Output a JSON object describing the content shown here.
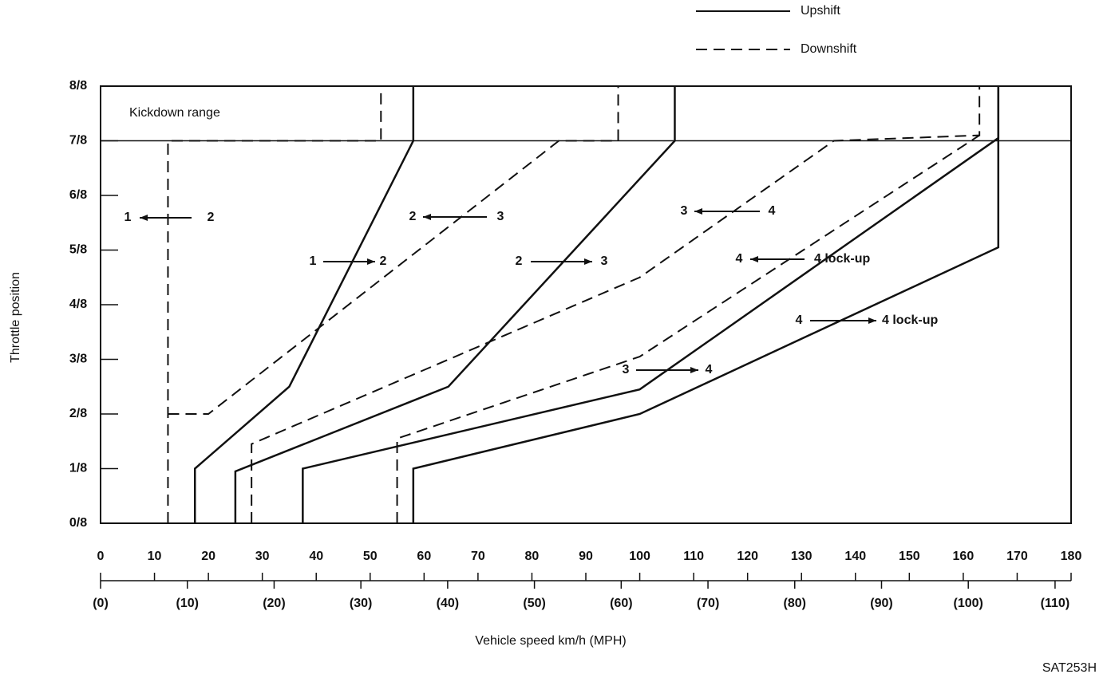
{
  "chart_data": {
    "type": "line",
    "xlabel": "Vehicle speed km/h (MPH)",
    "ylabel": "Throttle position",
    "footnote": "SAT253H",
    "legend": [
      {
        "label": "Upshift",
        "style": "solid"
      },
      {
        "label": "Downshift",
        "style": "dashed"
      }
    ],
    "xlim": [
      0,
      180
    ],
    "xticks": [
      0,
      10,
      20,
      30,
      40,
      50,
      60,
      70,
      80,
      90,
      100,
      110,
      120,
      130,
      140,
      150,
      160,
      170,
      180
    ],
    "x2ticks": [
      {
        "value": 0,
        "label": "(0)"
      },
      {
        "value": 10,
        "label": "(10)"
      },
      {
        "value": 20,
        "label": "(20)"
      },
      {
        "value": 30,
        "label": "(30)"
      },
      {
        "value": 40,
        "label": "(40)"
      },
      {
        "value": 50,
        "label": "(50)"
      },
      {
        "value": 60,
        "label": "(60)"
      },
      {
        "value": 70,
        "label": "(70)"
      },
      {
        "value": 80,
        "label": "(80)"
      },
      {
        "value": 90,
        "label": "(90)"
      },
      {
        "value": 100,
        "label": "(100)"
      },
      {
        "value": 110,
        "label": "(110)"
      }
    ],
    "ylim": [
      0,
      8
    ],
    "yticks": [
      {
        "value": 0,
        "label": "0/8"
      },
      {
        "value": 1,
        "label": "1/8"
      },
      {
        "value": 2,
        "label": "2/8"
      },
      {
        "value": 3,
        "label": "3/8"
      },
      {
        "value": 4,
        "label": "4/8"
      },
      {
        "value": 5,
        "label": "5/8"
      },
      {
        "value": 6,
        "label": "6/8"
      },
      {
        "value": 7,
        "label": "7/8"
      },
      {
        "value": 8,
        "label": "8/8"
      }
    ],
    "series": [
      {
        "style": "dashed",
        "x": [
          12.5,
          12.5,
          52,
          52
        ],
        "values": [
          0,
          7,
          7,
          8
        ]
      },
      {
        "style": "dashed",
        "x": [
          12.5,
          20,
          85,
          96,
          96
        ],
        "values": [
          2,
          2,
          7,
          7,
          8
        ]
      },
      {
        "style": "dashed",
        "x": [
          28,
          28,
          100,
          136,
          163,
          163
        ],
        "values": [
          0,
          1.45,
          4.5,
          7,
          7.1,
          8
        ]
      },
      {
        "style": "dashed",
        "x": [
          55,
          55,
          100,
          163
        ],
        "values": [
          0,
          1.55,
          3.05,
          7.1
        ]
      },
      {
        "style": "solid",
        "x": [
          17.5,
          17.5,
          35,
          58,
          58
        ],
        "values": [
          0,
          1,
          2.5,
          7,
          8
        ]
      },
      {
        "style": "solid",
        "x": [
          25,
          25,
          64.5,
          106.5,
          106.5
        ],
        "values": [
          0,
          0.95,
          2.5,
          7,
          8
        ]
      },
      {
        "style": "solid",
        "x": [
          37.5,
          37.5,
          100,
          166.5,
          166.5
        ],
        "values": [
          0,
          1,
          2.45,
          7.05,
          8
        ]
      },
      {
        "style": "solid",
        "x": [
          58,
          58,
          100,
          166.5,
          166.5
        ],
        "values": [
          0,
          1,
          2,
          5.05,
          8
        ]
      }
    ],
    "annotations": [
      "Kickdown range",
      "1",
      "2",
      "2",
      "3",
      "1",
      "2",
      "2",
      "3",
      "3",
      "4",
      "4",
      "4 lock-up",
      "4",
      "4 lock-up",
      "3",
      "4"
    ]
  }
}
